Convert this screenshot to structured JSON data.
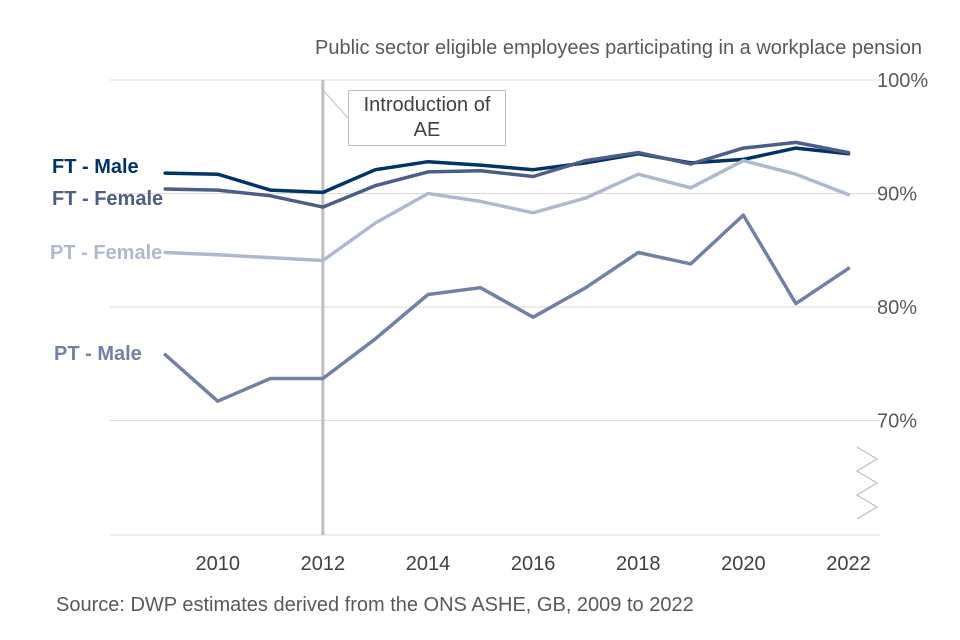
{
  "chart_data": {
    "type": "line",
    "title": "Public sector eligible employees participating in a workplace pension",
    "source": "Source: DWP estimates derived from the ONS ASHE, GB, 2009 to 2022",
    "x": [
      2009,
      2010,
      2011,
      2012,
      2013,
      2014,
      2015,
      2016,
      2017,
      2018,
      2019,
      2020,
      2021,
      2022
    ],
    "xticks": [
      2010,
      2012,
      2014,
      2016,
      2018,
      2020,
      2022
    ],
    "yticks": [
      70,
      80,
      90,
      100
    ],
    "ytick_labels": [
      "70%",
      "80%",
      "90%",
      "100%"
    ],
    "ylim": [
      60,
      100
    ],
    "axis_break": true,
    "annotation": {
      "x": 2012,
      "text": "Introduction of\nAE"
    },
    "series": [
      {
        "name": "FT - Male",
        "color": "#003366",
        "values": [
          91.8,
          91.7,
          90.3,
          90.1,
          92.1,
          92.8,
          92.5,
          92.1,
          92.7,
          93.5,
          92.7,
          93.0,
          94.0,
          93.5
        ]
      },
      {
        "name": "FT - Female",
        "color": "#4d5e86",
        "values": [
          90.4,
          90.3,
          89.8,
          88.8,
          90.7,
          91.9,
          92.0,
          91.5,
          92.9,
          93.6,
          92.6,
          94.0,
          94.5,
          93.6
        ]
      },
      {
        "name": "PT - Female",
        "color": "#aeb9d0",
        "values": [
          84.8,
          84.6,
          null,
          84.1,
          87.4,
          90.0,
          89.3,
          88.3,
          89.6,
          91.7,
          90.5,
          92.9,
          91.7,
          89.9
        ]
      },
      {
        "name": "PT - Male",
        "color": "#7180a6",
        "values": [
          75.8,
          71.7,
          73.7,
          73.7,
          77.2,
          81.1,
          81.7,
          79.1,
          81.7,
          84.8,
          83.8,
          88.1,
          80.3,
          83.4
        ]
      }
    ]
  }
}
